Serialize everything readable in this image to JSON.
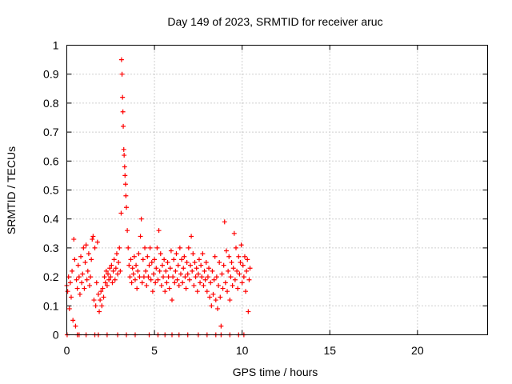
{
  "chart_data": {
    "type": "scatter",
    "title": "Day 149 of 2023, SRMTID for receiver aruc",
    "xlabel": "GPS time / hours",
    "ylabel": "SRMTID / TECUs",
    "xlim": [
      0,
      24
    ],
    "ylim": [
      0,
      1
    ],
    "xticks": [
      0,
      5,
      10,
      15,
      20
    ],
    "xtick_labels": [
      "0",
      "5",
      "10",
      "15",
      "20"
    ],
    "yticks": [
      0,
      0.1,
      0.2,
      0.3,
      0.4,
      0.5,
      0.6,
      0.7,
      0.8,
      0.9,
      1
    ],
    "ytick_labels": [
      "0",
      "0.1",
      "0.2",
      "0.3",
      "0.4",
      "0.5",
      "0.6",
      "0.7",
      "0.8",
      "0.9",
      "1"
    ],
    "grid": true,
    "marker": "+",
    "color": "#ff0000",
    "series": [
      {
        "name": "SRMTID",
        "points": [
          [
            0.0,
            0.17
          ],
          [
            0.05,
            0.15
          ],
          [
            0.1,
            0.2
          ],
          [
            0.15,
            0.09
          ],
          [
            0.2,
            0.18
          ],
          [
            0.25,
            0.13
          ],
          [
            0.3,
            0.22
          ],
          [
            0.35,
            0.05
          ],
          [
            0.4,
            0.33
          ],
          [
            0.45,
            0.26
          ],
          [
            0.5,
            0.03
          ],
          [
            0.55,
            0.19
          ],
          [
            0.6,
            0.16
          ],
          [
            0.65,
            0.24
          ],
          [
            0.7,
            0.2
          ],
          [
            0.75,
            0.14
          ],
          [
            0.8,
            0.27
          ],
          [
            0.85,
            0.18
          ],
          [
            0.9,
            0.21
          ],
          [
            0.95,
            0.3
          ],
          [
            1.0,
            0.16
          ],
          [
            1.05,
            0.25
          ],
          [
            1.1,
            0.31
          ],
          [
            1.15,
            0.19
          ],
          [
            1.2,
            0.22
          ],
          [
            1.25,
            0.28
          ],
          [
            1.3,
            0.17
          ],
          [
            1.35,
            0.2
          ],
          [
            1.4,
            0.26
          ],
          [
            1.45,
            0.33
          ],
          [
            1.5,
            0.34
          ],
          [
            1.55,
            0.12
          ],
          [
            1.6,
            0.3
          ],
          [
            1.65,
            0.1
          ],
          [
            1.7,
            0.18
          ],
          [
            1.75,
            0.32
          ],
          [
            1.8,
            0.14
          ],
          [
            1.85,
            0.08
          ],
          [
            1.9,
            0.12
          ],
          [
            1.95,
            0.15
          ],
          [
            2.0,
            0.1
          ],
          [
            2.05,
            0.16
          ],
          [
            2.1,
            0.13
          ],
          [
            2.15,
            0.2
          ],
          [
            2.2,
            0.18
          ],
          [
            2.25,
            0.22
          ],
          [
            2.3,
            0.17
          ],
          [
            2.35,
            0.21
          ],
          [
            2.4,
            0.19
          ],
          [
            2.45,
            0.23
          ],
          [
            2.5,
            0.2
          ],
          [
            2.55,
            0.24
          ],
          [
            2.6,
            0.18
          ],
          [
            2.65,
            0.22
          ],
          [
            2.7,
            0.26
          ],
          [
            2.75,
            0.19
          ],
          [
            2.8,
            0.23
          ],
          [
            2.85,
            0.28
          ],
          [
            2.9,
            0.21
          ],
          [
            2.95,
            0.25
          ],
          [
            3.0,
            0.3
          ],
          [
            3.05,
            0.22
          ],
          [
            3.1,
            0.42
          ],
          [
            3.12,
            0.95
          ],
          [
            3.15,
            0.9
          ],
          [
            3.18,
            0.82
          ],
          [
            3.2,
            0.77
          ],
          [
            3.22,
            0.72
          ],
          [
            3.25,
            0.64
          ],
          [
            3.27,
            0.62
          ],
          [
            3.3,
            0.58
          ],
          [
            3.32,
            0.55
          ],
          [
            3.35,
            0.52
          ],
          [
            3.37,
            0.48
          ],
          [
            3.4,
            0.44
          ],
          [
            3.45,
            0.36
          ],
          [
            3.5,
            0.3
          ],
          [
            3.55,
            0.24
          ],
          [
            3.6,
            0.2
          ],
          [
            3.65,
            0.26
          ],
          [
            3.7,
            0.18
          ],
          [
            3.75,
            0.23
          ],
          [
            3.8,
            0.21
          ],
          [
            3.85,
            0.27
          ],
          [
            3.9,
            0.19
          ],
          [
            3.95,
            0.24
          ],
          [
            4.0,
            0.16
          ],
          [
            4.05,
            0.22
          ],
          [
            4.1,
            0.28
          ],
          [
            4.15,
            0.2
          ],
          [
            4.2,
            0.34
          ],
          [
            4.25,
            0.4
          ],
          [
            4.3,
            0.18
          ],
          [
            4.35,
            0.26
          ],
          [
            4.4,
            0.2
          ],
          [
            4.45,
            0.3
          ],
          [
            4.5,
            0.22
          ],
          [
            4.55,
            0.17
          ],
          [
            4.6,
            0.27
          ],
          [
            4.65,
            0.2
          ],
          [
            4.7,
            0.24
          ],
          [
            4.75,
            0.3
          ],
          [
            4.8,
            0.19
          ],
          [
            4.85,
            0.25
          ],
          [
            4.9,
            0.15
          ],
          [
            4.95,
            0.21
          ],
          [
            5.0,
            0.26
          ],
          [
            5.05,
            0.18
          ],
          [
            5.1,
            0.23
          ],
          [
            5.15,
            0.3
          ],
          [
            5.2,
            0.19
          ],
          [
            5.25,
            0.36
          ],
          [
            5.3,
            0.22
          ],
          [
            5.35,
            0.28
          ],
          [
            5.4,
            0.17
          ],
          [
            5.45,
            0.24
          ],
          [
            5.5,
            0.2
          ],
          [
            5.55,
            0.26
          ],
          [
            5.6,
            0.15
          ],
          [
            5.65,
            0.22
          ],
          [
            5.7,
            0.18
          ],
          [
            5.75,
            0.25
          ],
          [
            5.8,
            0.2
          ],
          [
            5.85,
            0.16
          ],
          [
            5.9,
            0.23
          ],
          [
            5.95,
            0.29
          ],
          [
            6.0,
            0.12
          ],
          [
            6.05,
            0.2
          ],
          [
            6.1,
            0.26
          ],
          [
            6.15,
            0.18
          ],
          [
            6.2,
            0.22
          ],
          [
            6.25,
            0.28
          ],
          [
            6.3,
            0.19
          ],
          [
            6.35,
            0.24
          ],
          [
            6.4,
            0.17
          ],
          [
            6.45,
            0.3
          ],
          [
            6.5,
            0.21
          ],
          [
            6.55,
            0.26
          ],
          [
            6.6,
            0.18
          ],
          [
            6.65,
            0.23
          ],
          [
            6.7,
            0.27
          ],
          [
            6.75,
            0.2
          ],
          [
            6.8,
            0.16
          ],
          [
            6.85,
            0.25
          ],
          [
            6.9,
            0.21
          ],
          [
            6.95,
            0.3
          ],
          [
            7.0,
            0.19
          ],
          [
            7.05,
            0.24
          ],
          [
            7.1,
            0.34
          ],
          [
            7.15,
            0.22
          ],
          [
            7.2,
            0.28
          ],
          [
            7.25,
            0.17
          ],
          [
            7.3,
            0.25
          ],
          [
            7.35,
            0.2
          ],
          [
            7.4,
            0.23
          ],
          [
            7.45,
            0.15
          ],
          [
            7.5,
            0.21
          ],
          [
            7.55,
            0.26
          ],
          [
            7.6,
            0.18
          ],
          [
            7.65,
            0.24
          ],
          [
            7.7,
            0.2
          ],
          [
            7.75,
            0.28
          ],
          [
            7.8,
            0.17
          ],
          [
            7.85,
            0.22
          ],
          [
            7.9,
            0.19
          ],
          [
            7.95,
            0.25
          ],
          [
            8.0,
            0.15
          ],
          [
            8.05,
            0.2
          ],
          [
            8.1,
            0.23
          ],
          [
            8.15,
            0.13
          ],
          [
            8.2,
            0.18
          ],
          [
            8.25,
            0.1
          ],
          [
            8.3,
            0.22
          ],
          [
            8.35,
            0.14
          ],
          [
            8.4,
            0.19
          ],
          [
            8.45,
            0.27
          ],
          [
            8.5,
            0.12
          ],
          [
            8.55,
            0.2
          ],
          [
            8.6,
            0.09
          ],
          [
            8.65,
            0.17
          ],
          [
            8.7,
            0.25
          ],
          [
            8.75,
            0.13
          ],
          [
            8.8,
            0.03
          ],
          [
            8.85,
            0.21
          ],
          [
            8.9,
            0.16
          ],
          [
            8.95,
            0.24
          ],
          [
            9.0,
            0.39
          ],
          [
            9.05,
            0.18
          ],
          [
            9.1,
            0.29
          ],
          [
            9.15,
            0.15
          ],
          [
            9.2,
            0.22
          ],
          [
            9.25,
            0.27
          ],
          [
            9.3,
            0.12
          ],
          [
            9.35,
            0.2
          ],
          [
            9.4,
            0.25
          ],
          [
            9.45,
            0.17
          ],
          [
            9.5,
            0.23
          ],
          [
            9.55,
            0.35
          ],
          [
            9.6,
            0.19
          ],
          [
            9.65,
            0.3
          ],
          [
            9.7,
            0.22
          ],
          [
            9.75,
            0.16
          ],
          [
            9.8,
            0.27
          ],
          [
            9.85,
            0.21
          ],
          [
            9.9,
            0.25
          ],
          [
            9.95,
            0.31
          ],
          [
            10.0,
            0.18
          ],
          [
            10.05,
            0.24
          ],
          [
            10.1,
            0.2
          ],
          [
            10.15,
            0.27
          ],
          [
            10.2,
            0.15
          ],
          [
            10.25,
            0.22
          ],
          [
            10.3,
            0.26
          ],
          [
            10.35,
            0.08
          ],
          [
            10.4,
            0.19
          ],
          [
            10.45,
            0.23
          ]
        ],
        "zeros": [
          0.02,
          0.6,
          0.7,
          1.1,
          1.6,
          1.8,
          2.3,
          2.9,
          3.4,
          3.9,
          4.7,
          5.2,
          5.6,
          6.0,
          6.4,
          6.9,
          7.5,
          8.0,
          8.5,
          8.8,
          9.3,
          9.8,
          10.1
        ]
      }
    ]
  }
}
